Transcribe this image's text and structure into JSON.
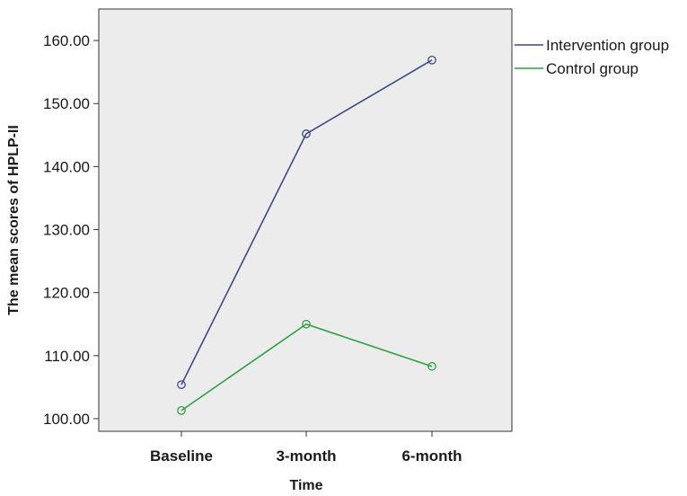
{
  "chart_data": {
    "type": "line",
    "xlabel": "Time",
    "ylabel": "The mean scores of HPLP-II",
    "categories": [
      "Baseline",
      "3-month",
      "6-month"
    ],
    "ylim": [
      98,
      165
    ],
    "yticks": [
      "100.00",
      "110.00",
      "120.00",
      "130.00",
      "140.00",
      "150.00",
      "160.00"
    ],
    "ytick_values": [
      100,
      110,
      120,
      130,
      140,
      150,
      160
    ],
    "grid": false,
    "legend_position": "right",
    "plot_background": "#ececec",
    "series": [
      {
        "name": "Intervention group",
        "color": "#3d4a8a",
        "values": [
          105.4,
          145.2,
          156.9
        ]
      },
      {
        "name": "Control group",
        "color": "#2ea043",
        "values": [
          101.3,
          115.0,
          108.3
        ]
      }
    ]
  }
}
